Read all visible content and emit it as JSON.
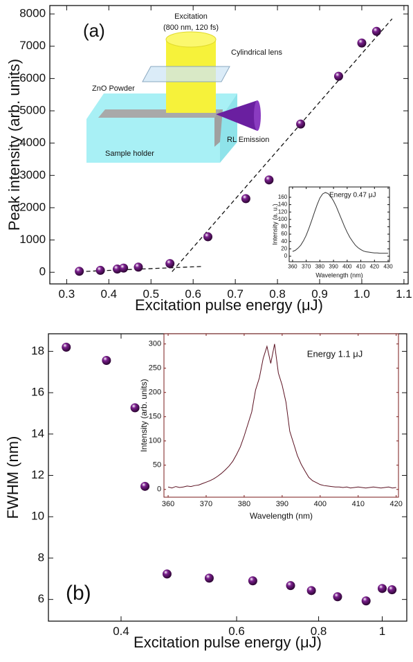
{
  "chart_data": [
    {
      "type": "scatter",
      "label": "(a)",
      "x_label": "Excitation pulse energy  (μJ)",
      "y_label": "Peak intensity (arb. units)",
      "x": [
        0.33,
        0.38,
        0.42,
        0.435,
        0.47,
        0.545,
        0.635,
        0.725,
        0.78,
        0.855,
        0.945,
        1.0,
        1.035
      ],
      "values": [
        30,
        60,
        100,
        130,
        160,
        270,
        1100,
        2280,
        2860,
        4590,
        6070,
        7100,
        7460
      ],
      "color": "#7b1f8e",
      "fit_lines": [
        {
          "x": [
            0.33,
            0.62
          ],
          "values": [
            20,
            180
          ]
        },
        {
          "x": [
            0.55,
            1.072
          ],
          "values": [
            20,
            7850
          ]
        }
      ],
      "xlim": [
        0.26,
        1.11
      ],
      "ylim": [
        -360,
        8260
      ],
      "xticks": [
        0.3,
        0.4,
        0.5,
        0.6,
        0.7,
        0.8,
        0.9,
        {
          "value": 1,
          "label": "1.0"
        },
        1.1
      ],
      "yticks": [
        0,
        1000,
        2000,
        3000,
        4000,
        5000,
        6000,
        7000,
        8000
      ],
      "schematic": {
        "excitation": "Excitation",
        "excitation_params": "(800 nm, 120 fs)",
        "lens": "Cylindrical lens",
        "powder": "ZnO Powder",
        "emission": "RL Emission",
        "holder": "Sample holder"
      },
      "inset": {
        "type": "line",
        "title": "Energy 0.47 μJ",
        "x_label": "Wavelength (nm)",
        "y_label": "Intensity (a. u.)",
        "color": "#333333",
        "x": [
          360,
          362,
          364,
          366,
          368,
          370,
          372,
          374,
          376,
          378,
          380,
          382,
          384,
          386,
          388,
          390,
          392,
          394,
          396,
          398,
          400,
          402,
          404,
          406,
          408,
          410,
          412,
          414,
          416,
          418,
          420,
          422,
          424,
          426,
          428,
          430
        ],
        "values": [
          13,
          16,
          22,
          30,
          42,
          57,
          76,
          97,
          119,
          140,
          158,
          169,
          173,
          170,
          162,
          150,
          135,
          117,
          99,
          81,
          65,
          51,
          40,
          30,
          23,
          18,
          14,
          12,
          11,
          10,
          9,
          9,
          8,
          8,
          8,
          8
        ],
        "xlim": [
          357.5,
          431
        ],
        "ylim": [
          -15,
          188
        ],
        "xticks": [
          360,
          370,
          380,
          390,
          400,
          410,
          420,
          430
        ],
        "yticks": [
          0,
          20,
          40,
          60,
          80,
          100,
          120,
          140,
          160
        ]
      }
    },
    {
      "type": "scatter",
      "label": "(b)",
      "log_x": true,
      "x_label": "Excitation pulse energy (μJ)",
      "y_label": "FWHM (nm)",
      "x": [
        0.33,
        0.38,
        0.42,
        0.435,
        0.47,
        0.545,
        0.635,
        0.725,
        0.78,
        0.855,
        0.945,
        1.0,
        1.035
      ],
      "values": [
        18.2,
        17.56,
        15.27,
        11.47,
        7.23,
        7.03,
        6.9,
        6.67,
        6.43,
        6.13,
        5.93,
        6.53,
        6.47
      ],
      "color": "#7b1f8e",
      "xlim": [
        0.31,
        1.09
      ],
      "ylim": [
        4.95,
        18.85
      ],
      "xticks": [
        0.4,
        0.6,
        0.8,
        1
      ],
      "yticks": [
        6,
        8,
        10,
        12,
        14,
        16,
        18
      ],
      "inset": {
        "type": "line",
        "title": "Energy 1.1 μJ",
        "x_label": "Wavelength (nm)",
        "y_label": "Intensity (arb. units)",
        "color": "#5a1020",
        "x": [
          360,
          361,
          362,
          363,
          364,
          365,
          366,
          367,
          368,
          369,
          370,
          371,
          372,
          373,
          374,
          375,
          376,
          377,
          378,
          379,
          380,
          381,
          382,
          383,
          384,
          385,
          386,
          387,
          388,
          389,
          390,
          391,
          392,
          393,
          394,
          395,
          396,
          397,
          398,
          399,
          400,
          401,
          402,
          403,
          404,
          405,
          406,
          407,
          408,
          409,
          410,
          411,
          412,
          413,
          414,
          415,
          416,
          417,
          418,
          419,
          420
        ],
        "values": [
          5,
          3,
          6,
          4,
          5,
          7,
          6,
          8,
          9,
          12,
          15,
          18,
          22,
          27,
          33,
          40,
          48,
          58,
          72,
          88,
          110,
          135,
          160,
          205,
          230,
          270,
          295,
          260,
          300,
          240,
          215,
          180,
          120,
          95,
          70,
          52,
          38,
          25,
          18,
          14,
          10,
          8,
          7,
          6,
          5,
          5,
          4,
          5,
          3,
          4,
          5,
          4,
          3,
          4,
          5,
          4,
          3,
          4,
          5,
          3,
          4
        ],
        "xlim": [
          358.9,
          420.6
        ],
        "ylim": [
          -16,
          321
        ],
        "xticks": [
          360,
          370,
          380,
          390,
          400,
          410,
          420
        ],
        "yticks": [
          0,
          50,
          100,
          150,
          200,
          250,
          300
        ]
      }
    }
  ]
}
